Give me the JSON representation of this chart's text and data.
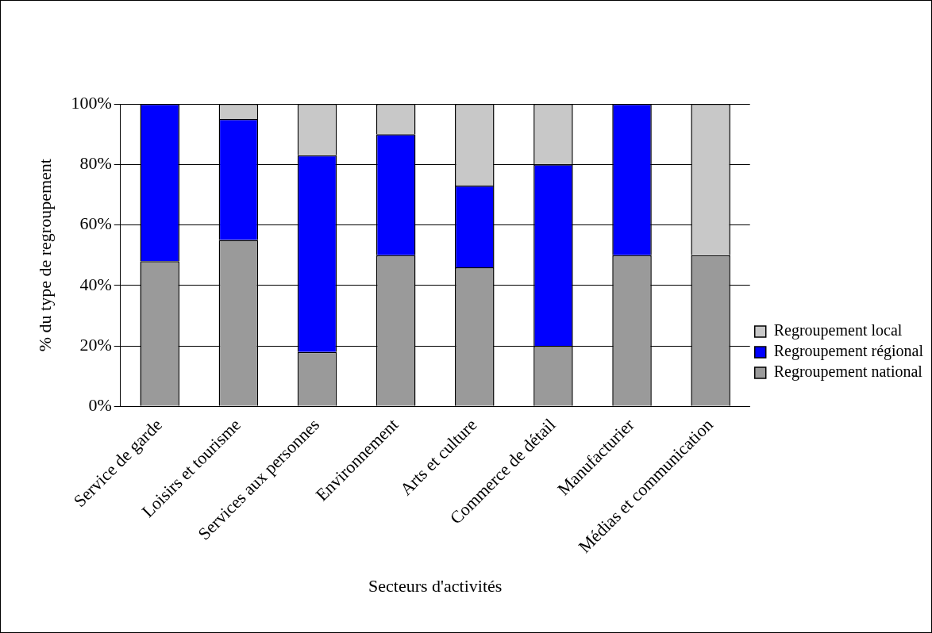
{
  "chart_data": {
    "type": "bar",
    "stacked": true,
    "xlabel": "Secteurs d'activités",
    "ylabel": "% du type de regroupement",
    "categories": [
      "Service de garde",
      "Loisirs et tourisme",
      "Services aux personnes",
      "Environnement",
      "Arts et culture",
      "Commerce de détail",
      "Manufacturier",
      "Médias et communication"
    ],
    "series": [
      {
        "name": "Regroupement national",
        "color": "#9a9a9a",
        "values": [
          48,
          55,
          18,
          50,
          46,
          20,
          50,
          50
        ]
      },
      {
        "name": "Regroupement régional",
        "color": "#0000ff",
        "values": [
          52,
          40,
          65,
          40,
          27,
          60,
          50,
          0
        ]
      },
      {
        "name": "Regroupement local",
        "color": "#c8c8c8",
        "values": [
          0,
          5,
          17,
          10,
          27,
          20,
          0,
          50
        ]
      }
    ],
    "ylim": [
      0,
      100
    ],
    "yticks": [
      {
        "value": 0,
        "label": "0%"
      },
      {
        "value": 20,
        "label": "20%"
      },
      {
        "value": 40,
        "label": "40%"
      },
      {
        "value": 60,
        "label": "60%"
      },
      {
        "value": 80,
        "label": "80%"
      },
      {
        "value": 100,
        "label": "100%"
      }
    ],
    "grid": "y",
    "legend": "right"
  }
}
